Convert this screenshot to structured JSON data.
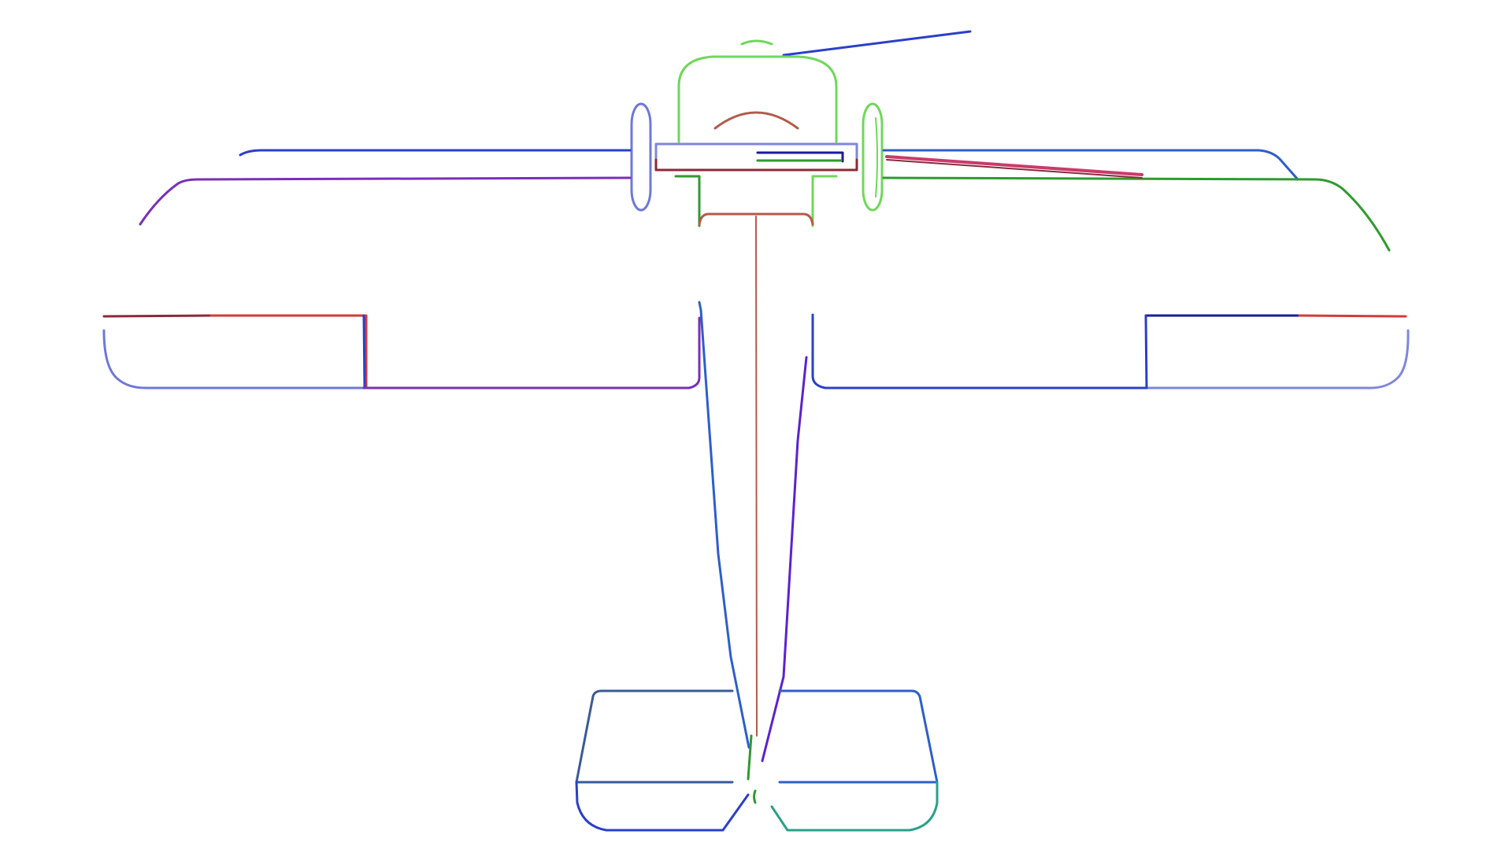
{
  "diagram": {
    "subject": "airplane",
    "colors": {
      "blue": "#2b3fc9",
      "mid_blue": "#2d5fc9",
      "light_blue": "#6e78d8",
      "lavender": "#7f86dc",
      "purple": "#7a2fb8",
      "violet": "#5c22d0",
      "green": "#2f9a2f",
      "light_green": "#6fd85a",
      "red": "#d63a3a",
      "crimson": "#c93a6a",
      "brown": "#b35a4a",
      "dark_red": "#8a2a3a",
      "slate": "#3a5a9a",
      "teal": "#2aa08a",
      "navy": "#1a1aa0"
    }
  }
}
